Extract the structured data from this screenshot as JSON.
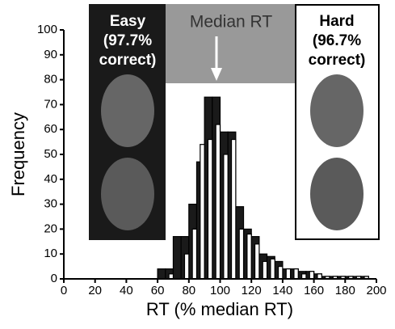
{
  "chart_data": {
    "type": "histogram",
    "xlabel": "RT (% median RT)",
    "ylabel": "Frequency",
    "bins": [
      60,
      65,
      70,
      75,
      80,
      85,
      90,
      95,
      100,
      105,
      110,
      115,
      120,
      125,
      130,
      135,
      140,
      145,
      150,
      155,
      160,
      165,
      170,
      175,
      180,
      185,
      190,
      195,
      200
    ],
    "series": [
      {
        "color": "#1a1a1a",
        "values": [
          4,
          4,
          17,
          17,
          30,
          47,
          73,
          73,
          59,
          59,
          29,
          20,
          17,
          10,
          9,
          7,
          4,
          4,
          3,
          3,
          2,
          1,
          1,
          1,
          1,
          1,
          1,
          0
        ]
      },
      {
        "color": "#ffffff",
        "values": [
          0,
          2,
          0,
          10,
          20,
          54,
          56,
          62,
          50,
          56,
          20,
          18,
          14,
          7,
          8,
          5,
          4,
          4,
          2,
          3,
          2,
          1,
          1,
          1,
          1,
          1,
          1,
          0
        ]
      }
    ],
    "xlim": [
      0,
      200
    ],
    "xticks": [
      0,
      20,
      40,
      60,
      80,
      100,
      120,
      140,
      160,
      180,
      200
    ],
    "ylim": [
      0,
      100
    ],
    "yticks": [
      0,
      10,
      20,
      30,
      40,
      50,
      60,
      70,
      80,
      90,
      100
    ],
    "annotations": {
      "median": "Median RT",
      "easy": [
        "Easy",
        "(97.7%",
        "correct)"
      ],
      "hard": [
        "Hard",
        "(96.7%",
        "correct)"
      ]
    }
  }
}
